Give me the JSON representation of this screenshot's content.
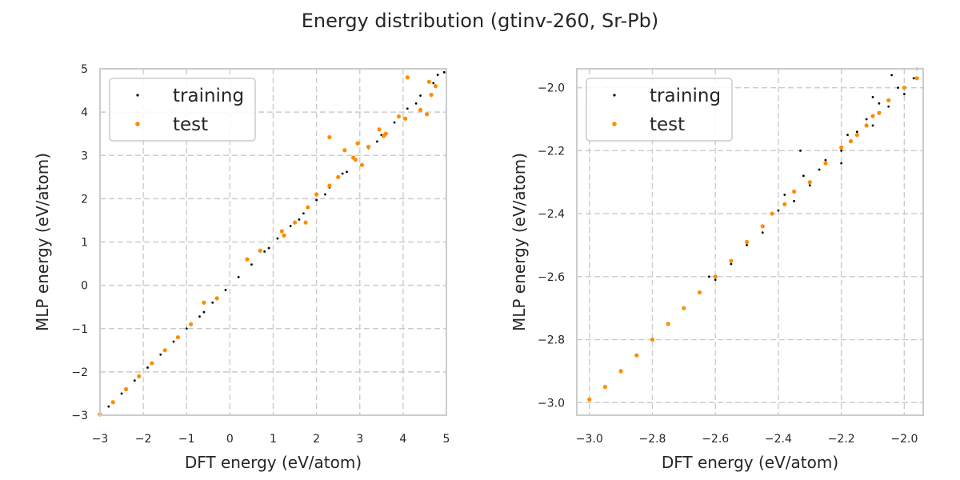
{
  "figure": {
    "title": "Energy distribution (gtinv-260, Sr-Pb)"
  },
  "chart_data": [
    {
      "type": "scatter",
      "xlabel": "DFT energy (eV/atom)",
      "ylabel": "MLP energy (eV/atom)",
      "xlim": [
        -3,
        5
      ],
      "ylim": [
        -3,
        5
      ],
      "xticks": [
        "−3",
        "−2",
        "−1",
        "0",
        "1",
        "2",
        "3",
        "4",
        "5"
      ],
      "yticks": [
        "−3",
        "−2",
        "−1",
        "0",
        "1",
        "2",
        "3",
        "4",
        "5"
      ],
      "xtick_values": [
        -3,
        -2,
        -1,
        0,
        1,
        2,
        3,
        4,
        5
      ],
      "ytick_values": [
        -3,
        -2,
        -1,
        0,
        1,
        2,
        3,
        4,
        5
      ],
      "grid": true,
      "legend_position": "top-left",
      "series": [
        {
          "name": "training",
          "color": "#000000",
          "points": [
            [
              -3.0,
              -3.0
            ],
            [
              -2.8,
              -2.8
            ],
            [
              -2.5,
              -2.5
            ],
            [
              -2.2,
              -2.2
            ],
            [
              -1.9,
              -1.9
            ],
            [
              -1.6,
              -1.6
            ],
            [
              -1.3,
              -1.3
            ],
            [
              -1.0,
              -1.0
            ],
            [
              -0.7,
              -0.72
            ],
            [
              -0.4,
              -0.4
            ],
            [
              -0.1,
              -0.11
            ],
            [
              0.2,
              0.19
            ],
            [
              0.5,
              0.48
            ],
            [
              0.8,
              0.78
            ],
            [
              1.1,
              1.08
            ],
            [
              1.4,
              1.37
            ],
            [
              1.7,
              1.66
            ],
            [
              2.0,
              1.97
            ],
            [
              2.3,
              2.26
            ],
            [
              2.6,
              2.58
            ],
            [
              2.9,
              2.88
            ],
            [
              3.2,
              3.17
            ],
            [
              3.5,
              3.47
            ],
            [
              3.8,
              3.76
            ],
            [
              4.1,
              4.08
            ],
            [
              4.4,
              4.38
            ],
            [
              4.7,
              4.67
            ],
            [
              4.95,
              4.92
            ],
            [
              2.2,
              2.1
            ],
            [
              2.7,
              2.62
            ],
            [
              3.4,
              3.32
            ],
            [
              4.3,
              4.2
            ],
            [
              1.6,
              1.52
            ],
            [
              0.9,
              0.86
            ],
            [
              -0.6,
              -0.62
            ],
            [
              4.8,
              4.86
            ]
          ]
        },
        {
          "name": "test",
          "color": "#ff8c00",
          "points": [
            [
              -3.0,
              -2.98
            ],
            [
              -2.7,
              -2.7
            ],
            [
              -2.4,
              -2.4
            ],
            [
              -2.1,
              -2.1
            ],
            [
              -1.8,
              -1.8
            ],
            [
              -1.5,
              -1.5
            ],
            [
              -1.2,
              -1.2
            ],
            [
              -0.9,
              -0.9
            ],
            [
              -0.6,
              -0.4
            ],
            [
              -0.3,
              -0.3
            ],
            [
              0.4,
              0.6
            ],
            [
              0.7,
              0.8
            ],
            [
              1.2,
              1.25
            ],
            [
              1.5,
              1.45
            ],
            [
              1.8,
              1.8
            ],
            [
              2.3,
              2.3
            ],
            [
              2.5,
              2.5
            ],
            [
              2.9,
              2.9
            ],
            [
              3.2,
              3.2
            ],
            [
              3.6,
              3.5
            ],
            [
              4.1,
              4.8
            ],
            [
              4.6,
              4.7
            ],
            [
              2.3,
              3.42
            ],
            [
              2.65,
              3.12
            ],
            [
              2.95,
              3.28
            ],
            [
              3.05,
              2.78
            ],
            [
              2.85,
              2.95
            ],
            [
              3.45,
              3.6
            ],
            [
              3.55,
              3.45
            ],
            [
              1.75,
              1.45
            ],
            [
              1.25,
              1.15
            ],
            [
              4.05,
              3.85
            ],
            [
              4.4,
              4.05
            ],
            [
              4.55,
              3.95
            ],
            [
              4.65,
              4.4
            ],
            [
              4.75,
              4.6
            ],
            [
              2.0,
              2.1
            ],
            [
              3.9,
              3.9
            ]
          ]
        }
      ]
    },
    {
      "type": "scatter",
      "xlabel": "DFT energy (eV/atom)",
      "ylabel": "MLP energy (eV/atom)",
      "xlim": [
        -3.04,
        -1.94
      ],
      "ylim": [
        -3.04,
        -1.94
      ],
      "xticks": [
        "−3.0",
        "−2.8",
        "−2.6",
        "−2.4",
        "−2.2",
        "−2.0"
      ],
      "yticks": [
        "−3.0",
        "−2.8",
        "−2.6",
        "−2.4",
        "−2.2",
        "−2.0"
      ],
      "xtick_values": [
        -3.0,
        -2.8,
        -2.6,
        -2.4,
        -2.2,
        -2.0
      ],
      "ytick_values": [
        -3.0,
        -2.8,
        -2.6,
        -2.4,
        -2.2,
        -2.0
      ],
      "grid": true,
      "legend_position": "top-left",
      "series": [
        {
          "name": "training",
          "color": "#000000",
          "points": [
            [
              -2.95,
              -2.95
            ],
            [
              -2.85,
              -2.85
            ],
            [
              -2.75,
              -2.75
            ],
            [
              -2.65,
              -2.65
            ],
            [
              -2.62,
              -2.6
            ],
            [
              -2.6,
              -2.61
            ],
            [
              -2.55,
              -2.56
            ],
            [
              -2.5,
              -2.5
            ],
            [
              -2.45,
              -2.46
            ],
            [
              -2.4,
              -2.39
            ],
            [
              -2.38,
              -2.34
            ],
            [
              -2.35,
              -2.36
            ],
            [
              -2.32,
              -2.28
            ],
            [
              -2.3,
              -2.31
            ],
            [
              -2.27,
              -2.26
            ],
            [
              -2.25,
              -2.23
            ],
            [
              -2.2,
              -2.2
            ],
            [
              -2.18,
              -2.15
            ],
            [
              -2.15,
              -2.14
            ],
            [
              -2.12,
              -2.1
            ],
            [
              -2.1,
              -2.12
            ],
            [
              -2.08,
              -2.05
            ],
            [
              -2.05,
              -2.06
            ],
            [
              -2.02,
              -2.0
            ],
            [
              -2.0,
              -2.02
            ],
            [
              -1.97,
              -1.97
            ],
            [
              -1.96,
              -1.94
            ],
            [
              -2.33,
              -2.2
            ],
            [
              -2.04,
              -1.96
            ],
            [
              -2.1,
              -2.03
            ],
            [
              -2.2,
              -2.24
            ]
          ]
        },
        {
          "name": "test",
          "color": "#ff8c00",
          "points": [
            [
              -3.0,
              -2.99
            ],
            [
              -2.95,
              -2.95
            ],
            [
              -2.9,
              -2.9
            ],
            [
              -2.85,
              -2.85
            ],
            [
              -2.8,
              -2.8
            ],
            [
              -2.75,
              -2.75
            ],
            [
              -2.7,
              -2.7
            ],
            [
              -2.65,
              -2.65
            ],
            [
              -2.6,
              -2.6
            ],
            [
              -2.55,
              -2.55
            ],
            [
              -2.5,
              -2.49
            ],
            [
              -2.45,
              -2.44
            ],
            [
              -2.42,
              -2.4
            ],
            [
              -2.38,
              -2.37
            ],
            [
              -2.35,
              -2.33
            ],
            [
              -2.3,
              -2.3
            ],
            [
              -2.25,
              -2.24
            ],
            [
              -2.2,
              -2.19
            ],
            [
              -2.15,
              -2.15
            ],
            [
              -2.1,
              -2.09
            ],
            [
              -2.05,
              -2.04
            ],
            [
              -2.0,
              -2.0
            ],
            [
              -1.96,
              -1.97
            ],
            [
              -2.12,
              -2.12
            ],
            [
              -2.08,
              -2.08
            ],
            [
              -2.17,
              -2.17
            ]
          ]
        }
      ]
    }
  ]
}
